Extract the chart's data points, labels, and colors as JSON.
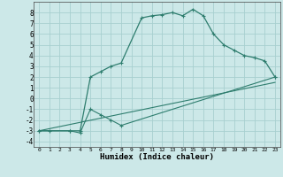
{
  "xlabel": "Humidex (Indice chaleur)",
  "background_color": "#cce8e8",
  "grid_color": "#a8d0d0",
  "line_color": "#2e7d6e",
  "xlim": [
    -0.5,
    23.5
  ],
  "ylim": [
    -4.5,
    9.0
  ],
  "xticks": [
    0,
    1,
    2,
    3,
    4,
    5,
    6,
    7,
    8,
    9,
    10,
    11,
    12,
    13,
    14,
    15,
    16,
    17,
    18,
    19,
    20,
    21,
    22,
    23
  ],
  "yticks": [
    -4,
    -3,
    -2,
    -1,
    0,
    1,
    2,
    3,
    4,
    5,
    6,
    7,
    8
  ],
  "line1_x": [
    0,
    1,
    3,
    4,
    5,
    6,
    7,
    8,
    10,
    11,
    12,
    13,
    14,
    15,
    16,
    17,
    18,
    19,
    20,
    21,
    22,
    23
  ],
  "line1_y": [
    -3,
    -3,
    -3,
    -3,
    2,
    2.5,
    3,
    3.3,
    7.5,
    7.7,
    7.8,
    8.0,
    7.7,
    8.3,
    7.7,
    6.0,
    5.0,
    4.5,
    4.0,
    3.8,
    3.5,
    2.0
  ],
  "line2_x": [
    0,
    3,
    4,
    5,
    6,
    7,
    8,
    23
  ],
  "line2_y": [
    -3,
    -3,
    -3.2,
    -1.0,
    -1.5,
    -2.0,
    -2.5,
    2.0
  ],
  "line3_x": [
    0,
    23
  ],
  "line3_y": [
    -3,
    1.5
  ]
}
